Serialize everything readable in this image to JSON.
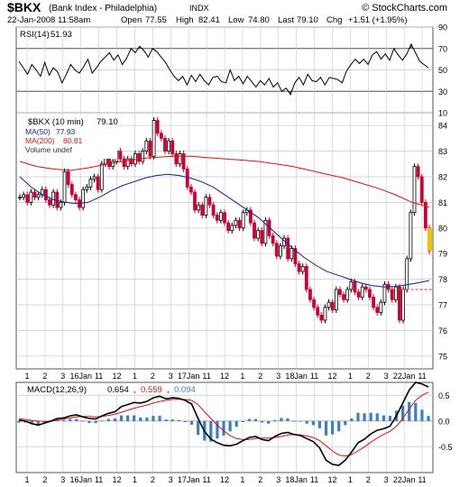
{
  "header": {
    "symbol": "$BKX",
    "name": "(Bank Index - Philadelphia)",
    "exchange": "INDX",
    "date": "22-Jan-2008 11:58am",
    "open_label": "Open",
    "open": "77.55",
    "high_label": "High",
    "high": "82.41",
    "low_label": "Low",
    "low": "74.80",
    "last_label": "Last",
    "last": "79.10",
    "chg_label": "Chg",
    "chg": "+1.51 (+1.95%)",
    "watermark": "© StockCharts.com"
  },
  "colors": {
    "price_up": "#000000",
    "price_down": "#cc0033",
    "ma50": "#1a1a8c",
    "ma200": "#dd1111",
    "macd_line": "#000000",
    "signal_line": "#dd1111",
    "histogram": "#3a7fc0",
    "rsi_line": "#000000",
    "grid": "#c8c8c8",
    "last_marker": "#f2c200"
  },
  "chart_data": [
    {
      "type": "line",
      "panel": "rsi",
      "label": "RSI(14)",
      "last_value": "51.93",
      "ylim": [
        10,
        90
      ],
      "yticks": [
        10,
        30,
        50,
        70,
        90
      ],
      "reference_lines": [
        30,
        70
      ],
      "values": [
        58,
        52,
        46,
        55,
        50,
        44,
        57,
        45,
        52,
        48,
        38,
        46,
        55,
        50,
        47,
        53,
        60,
        47,
        52,
        58,
        62,
        66,
        59,
        64,
        55,
        61,
        70,
        66,
        72,
        68,
        62,
        70,
        67,
        62,
        57,
        50,
        44,
        40,
        44,
        36,
        45,
        39,
        46,
        40,
        36,
        43,
        44,
        39,
        38,
        50,
        40,
        44,
        37,
        44,
        39,
        34,
        40,
        36,
        42,
        34,
        38,
        30,
        33,
        27,
        38,
        43,
        36,
        46,
        40,
        39,
        43,
        36,
        43,
        42,
        41,
        38,
        49,
        55,
        60,
        56,
        60,
        55,
        64,
        67,
        60,
        65,
        59,
        70,
        64,
        59,
        65,
        74,
        66,
        58,
        55,
        52
      ]
    },
    {
      "type": "candlestick",
      "panel": "price",
      "label": "$BKX (10 min)",
      "last_value": "79.10",
      "ylim": [
        74.5,
        84.5
      ],
      "yticks": [
        75,
        76,
        77,
        78,
        79,
        80,
        81,
        82,
        83,
        84
      ],
      "x_tick_labels": [
        "1",
        "2",
        "3",
        "16Jan",
        "11",
        "12",
        "1",
        "2",
        "3",
        "17Jan",
        "11",
        "12",
        "1",
        "2",
        "3",
        "18Jan",
        "11",
        "12",
        "1",
        "2",
        "3",
        "22Jan",
        "11"
      ],
      "close": [
        81.2,
        81.3,
        81.0,
        81.4,
        81.2,
        81.3,
        81.5,
        81.1,
        80.9,
        81.4,
        80.8,
        81.0,
        82.2,
        81.7,
        81.3,
        81.1,
        80.8,
        81.5,
        81.6,
        81.9,
        82.0,
        81.5,
        82.5,
        82.8,
        82.4,
        82.6,
        83.0,
        82.7,
        82.4,
        82.7,
        82.5,
        82.9,
        82.6,
        83.0,
        83.4,
        82.8,
        84.2,
        83.7,
        83.5,
        83.0,
        83.4,
        82.9,
        82.5,
        82.9,
        82.3,
        81.6,
        81.4,
        80.7,
        80.9,
        80.5,
        81.2,
        80.9,
        80.5,
        80.3,
        80.6,
        80.2,
        79.9,
        80.1,
        80.3,
        80.0,
        80.6,
        80.7,
        80.2,
        79.6,
        79.9,
        79.4,
        80.3,
        79.7,
        79.4,
        78.9,
        79.3,
        79.6,
        78.8,
        79.2,
        78.6,
        78.3,
        78.5,
        77.6,
        77.2,
        76.9,
        76.6,
        76.4,
        76.9,
        77.1,
        76.8,
        77.6,
        77.4,
        77.2,
        77.6,
        77.9,
        77.5,
        77.3,
        77.7,
        77.6,
        77.3,
        76.9,
        76.7,
        77.1,
        77.8,
        77.6,
        77.2,
        77.7,
        76.4,
        77.6,
        78.8,
        80.6,
        82.4,
        82.0,
        81.0,
        80.0,
        79.1
      ],
      "series": [
        {
          "name": "MA(50)",
          "value": "77.93"
        },
        {
          "name": "MA(200)",
          "value": "80.81"
        },
        {
          "name": "Volume undef",
          "value": ""
        }
      ],
      "ma50": [
        82.0,
        81.6,
        81.3,
        81.1,
        81.0,
        80.95,
        81.0,
        81.2,
        81.45,
        81.65,
        81.8,
        81.95,
        82.05,
        82.1,
        82.05,
        81.95,
        81.8,
        81.6,
        81.3,
        81.0,
        80.7,
        80.4,
        80.0,
        79.6,
        79.2,
        78.85,
        78.55,
        78.3,
        78.15,
        78.0,
        77.85,
        77.75,
        77.7,
        77.72,
        77.78,
        77.86,
        77.95
      ],
      "ma200": [
        82.6,
        82.4,
        82.3,
        82.25,
        82.35,
        82.48,
        82.6,
        82.7,
        82.76,
        82.8,
        82.8,
        82.75,
        82.7,
        82.65,
        82.6,
        82.5,
        82.4,
        82.25,
        82.1,
        81.95,
        81.75,
        81.55,
        81.3,
        81.0,
        80.81
      ],
      "last_price_marker": 79.1,
      "dashed_level": 77.6
    },
    {
      "type": "line",
      "panel": "macd",
      "label": "MACD(12,26,9)",
      "macd_value": "0.654",
      "signal_value": "0.559",
      "histogram_value": "0.094",
      "ylim": [
        -1.0,
        0.75
      ],
      "yticks": [
        -0.5,
        0.0,
        0.5
      ],
      "macd": [
        0.02,
        0.0,
        -0.05,
        -0.08,
        -0.04,
        0.0,
        0.05,
        0.06,
        0.1,
        0.12,
        0.08,
        0.05,
        0.04,
        0.1,
        0.15,
        0.18,
        0.28,
        0.32,
        0.36,
        0.35,
        0.38,
        0.45,
        0.48,
        0.43,
        0.45,
        0.44,
        0.4,
        0.33,
        0.05,
        -0.2,
        -0.35,
        -0.42,
        -0.47,
        -0.48,
        -0.45,
        -0.38,
        -0.32,
        -0.3,
        -0.36,
        -0.38,
        -0.3,
        -0.24,
        -0.22,
        -0.26,
        -0.28,
        -0.34,
        -0.4,
        -0.52,
        -0.76,
        -0.84,
        -0.86,
        -0.76,
        -0.6,
        -0.42,
        -0.35,
        -0.25,
        -0.18,
        -0.15,
        -0.1,
        0.1,
        0.35,
        0.6,
        0.75,
        0.72,
        0.66
      ],
      "signal": [
        0.05,
        0.03,
        0.01,
        0.0,
        -0.01,
        0.0,
        0.02,
        0.04,
        0.06,
        0.08,
        0.09,
        0.09,
        0.08,
        0.09,
        0.11,
        0.13,
        0.17,
        0.21,
        0.25,
        0.28,
        0.31,
        0.35,
        0.38,
        0.4,
        0.42,
        0.42,
        0.42,
        0.4,
        0.32,
        0.18,
        0.05,
        -0.08,
        -0.19,
        -0.28,
        -0.34,
        -0.36,
        -0.36,
        -0.34,
        -0.33,
        -0.33,
        -0.32,
        -0.3,
        -0.27,
        -0.26,
        -0.27,
        -0.29,
        -0.32,
        -0.38,
        -0.48,
        -0.58,
        -0.66,
        -0.68,
        -0.65,
        -0.58,
        -0.5,
        -0.41,
        -0.33,
        -0.26,
        -0.2,
        -0.1,
        0.05,
        0.23,
        0.4,
        0.5,
        0.56
      ],
      "histogram": [
        -0.03,
        -0.03,
        -0.06,
        -0.08,
        -0.03,
        0.0,
        0.03,
        0.02,
        0.04,
        0.04,
        -0.01,
        -0.04,
        -0.04,
        0.01,
        0.04,
        0.05,
        0.11,
        0.11,
        0.11,
        0.07,
        0.07,
        0.1,
        0.1,
        0.03,
        0.03,
        0.02,
        -0.02,
        -0.07,
        -0.27,
        -0.38,
        -0.4,
        -0.34,
        -0.28,
        -0.2,
        -0.11,
        -0.02,
        0.04,
        0.04,
        -0.03,
        -0.05,
        0.02,
        0.06,
        0.05,
        0.0,
        -0.01,
        -0.05,
        -0.08,
        -0.14,
        -0.28,
        -0.26,
        -0.2,
        -0.08,
        0.05,
        0.16,
        0.15,
        0.16,
        0.15,
        0.11,
        0.1,
        0.2,
        0.3,
        0.37,
        0.35,
        0.22,
        0.1
      ]
    }
  ]
}
